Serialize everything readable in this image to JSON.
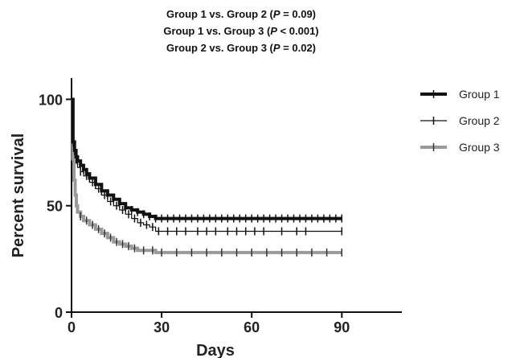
{
  "annotations": [
    {
      "pre": "Group 1 vs. Group 2 (",
      "p": "P",
      "post": " = 0.09)"
    },
    {
      "pre": "Group 1 vs. Group 3 (",
      "p": "P",
      "post": " < 0.001)"
    },
    {
      "pre": "Group 2 vs. Group 3 (",
      "p": "P",
      "post": " = 0.02)"
    }
  ],
  "chart_data": {
    "type": "line",
    "title": "",
    "xlabel": "Days",
    "ylabel": "Percent survival",
    "xlim": [
      0,
      110
    ],
    "ylim": [
      0,
      110
    ],
    "xticks": [
      0,
      30,
      60,
      90
    ],
    "yticks": [
      0,
      50,
      100
    ],
    "grid": false,
    "legend_position": "top-right",
    "series": [
      {
        "name": "Group 1",
        "color": "#111111",
        "line_width": 4,
        "x": [
          0,
          0.5,
          1,
          1.5,
          2,
          3,
          4,
          5,
          6,
          8,
          10,
          12,
          14,
          16,
          18,
          20,
          22,
          24,
          26,
          28,
          90
        ],
        "y": [
          100,
          80,
          76,
          73,
          71,
          69,
          67,
          65,
          63,
          60,
          57,
          55,
          53,
          51,
          49,
          48,
          47,
          46,
          45,
          44,
          44
        ],
        "censor_x": [
          2,
          4,
          6,
          8,
          10,
          12,
          14,
          16,
          18,
          20,
          22,
          24,
          26,
          28,
          30,
          32,
          34,
          36,
          38,
          40,
          42,
          44,
          46,
          48,
          50,
          52,
          54,
          56,
          58,
          60,
          62,
          64,
          66,
          68,
          70,
          72,
          74,
          76,
          78,
          80,
          82,
          84,
          86,
          88,
          90
        ]
      },
      {
        "name": "Group 2",
        "color": "#111111",
        "line_width": 1.2,
        "x": [
          0,
          0.5,
          1,
          1.5,
          2,
          3,
          4,
          6,
          8,
          10,
          12,
          14,
          16,
          18,
          20,
          22,
          24,
          26,
          28,
          90
        ],
        "y": [
          100,
          78,
          74,
          70,
          68,
          66,
          64,
          61,
          58,
          55,
          52,
          50,
          48,
          46,
          44,
          42,
          41,
          40,
          38,
          38
        ],
        "censor_x": [
          3,
          5,
          7,
          9,
          11,
          13,
          15,
          17,
          19,
          21,
          23,
          25,
          27,
          29,
          32,
          35,
          38,
          42,
          45,
          48,
          52,
          55,
          58,
          61,
          64,
          70,
          75,
          78,
          90
        ]
      },
      {
        "name": "Group 3",
        "color": "#9a9a9a",
        "line_width": 4,
        "x": [
          0,
          0.4,
          0.8,
          1.2,
          1.6,
          2,
          3,
          4,
          6,
          8,
          10,
          12,
          14,
          16,
          18,
          20,
          22,
          25,
          28,
          90
        ],
        "y": [
          100,
          72,
          62,
          55,
          50,
          47,
          45,
          43,
          41,
          39,
          37,
          35,
          33,
          32,
          31,
          30,
          29,
          29,
          28,
          28
        ],
        "censor_x": [
          3,
          5,
          7,
          9,
          11,
          13,
          15,
          17,
          19,
          21,
          24,
          27,
          30,
          35,
          40,
          45,
          50,
          55,
          60,
          65,
          70,
          75,
          80,
          85,
          90
        ]
      }
    ]
  }
}
